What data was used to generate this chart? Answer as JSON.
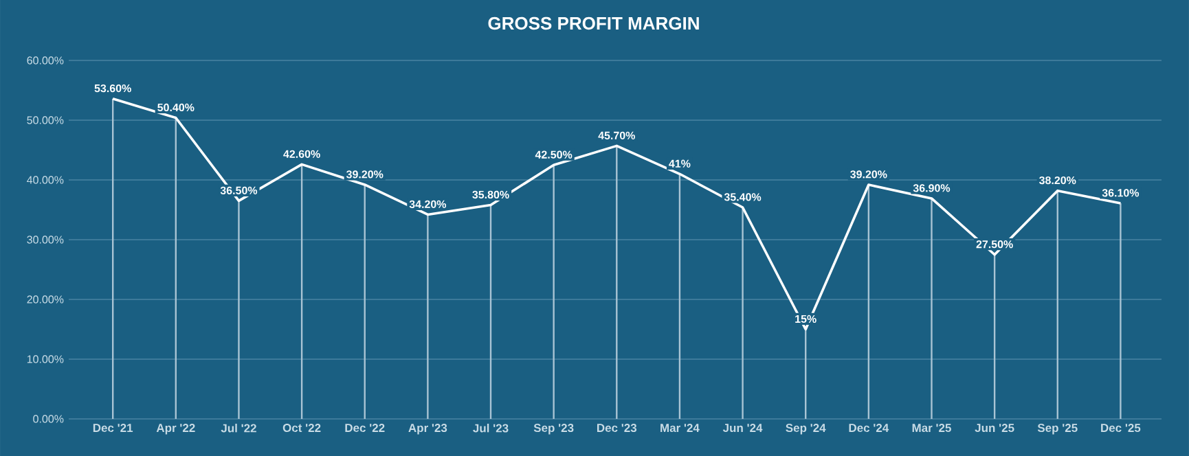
{
  "chart_data": {
    "type": "line",
    "title": "GROSS PROFIT MARGIN",
    "categories": [
      "Dec '21",
      "Apr '22",
      "Jul '22",
      "Oct '22",
      "Dec '22",
      "Apr '23",
      "Jul '23",
      "Sep '23",
      "Dec '23",
      "Mar '24",
      "Jun '24",
      "Sep '24",
      "Dec '24",
      "Mar '25",
      "Jun '25",
      "Sep '25",
      "Dec '25"
    ],
    "series": [
      {
        "color": "#ffffff",
        "values": [
          53.6,
          50.4,
          36.5,
          42.6,
          39.2,
          34.2,
          35.8,
          42.5,
          45.7,
          41,
          35.4,
          15,
          39.2,
          36.9,
          27.5,
          38.2,
          36.1
        ],
        "value_labels": [
          "53.60%",
          "50.40%",
          "36.50%",
          "42.60%",
          "39.20%",
          "34.20%",
          "35.80%",
          "42.50%",
          "45.70%",
          "41%",
          "35.40%",
          "15%",
          "39.20%",
          "36.90%",
          "27.50%",
          "38.20%",
          "36.10%"
        ]
      },
      {
        "type": "bar",
        "color": "#a9c4d4",
        "values": [
          53.6,
          50.4,
          36.5,
          42.6,
          39.2,
          34.2,
          35.8,
          42.5,
          45.7,
          41,
          35.4,
          15,
          39.2,
          36.9,
          27.5,
          38.2,
          36.1
        ]
      }
    ],
    "ylim": [
      0,
      60
    ],
    "yticks": [
      {
        "value": 0,
        "label": "0.00%"
      },
      {
        "value": 10,
        "label": "10.00%"
      },
      {
        "value": 20,
        "label": "20.00%"
      },
      {
        "value": 30,
        "label": "30.00%"
      },
      {
        "value": 40,
        "label": "40.00%"
      },
      {
        "value": 50,
        "label": "50.00%"
      },
      {
        "value": 60,
        "label": "60.00%"
      }
    ],
    "grid": "y",
    "marker": "none",
    "line_style": "solid"
  }
}
